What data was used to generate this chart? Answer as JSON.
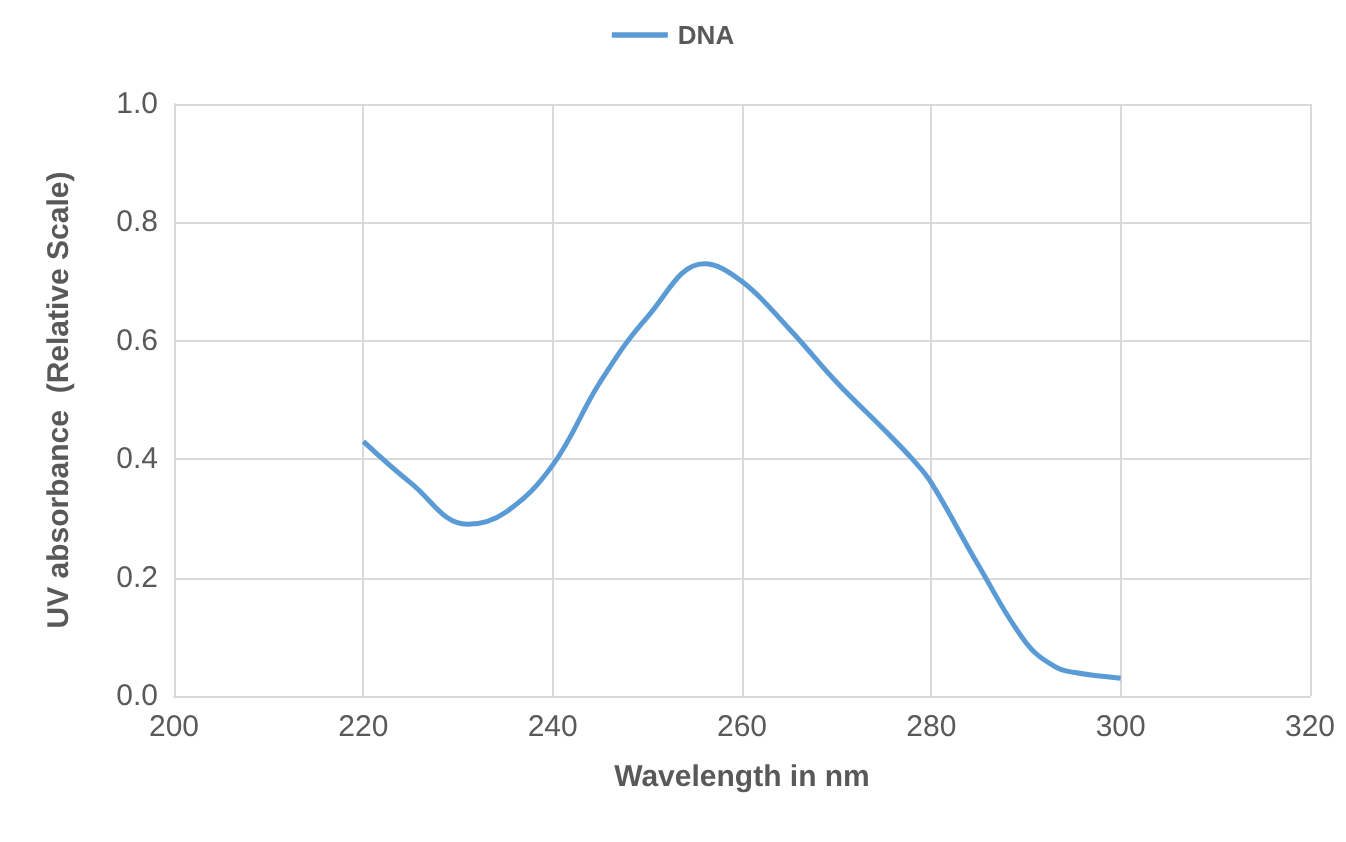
{
  "chart_data": {
    "type": "line",
    "xlabel": "Wavelength in nm",
    "ylabel": "UV absorbance  (Relative Scale)",
    "series": [
      {
        "name": "DNA",
        "color": "#5b9bd5",
        "x": [
          220,
          225,
          231,
          235,
          240,
          245,
          250,
          256,
          260,
          265,
          270,
          275,
          278,
          280,
          285,
          290,
          293,
          295,
          300
        ],
        "values": [
          0.43,
          0.36,
          0.29,
          0.31,
          0.39,
          0.53,
          0.64,
          0.73,
          0.7,
          0.62,
          0.53,
          0.45,
          0.4,
          0.36,
          0.22,
          0.09,
          0.05,
          0.04,
          0.03
        ]
      }
    ],
    "xlim": [
      200,
      320
    ],
    "xticks": [
      200,
      220,
      240,
      260,
      280,
      300,
      320
    ],
    "ylim": [
      0,
      1
    ],
    "yticks": [
      {
        "value": 0,
        "label": "0.0"
      },
      0.2,
      0.4,
      0.6,
      0.8,
      {
        "value": 1,
        "label": "1.0"
      }
    ],
    "grid": true,
    "legend": "top",
    "marker": "none",
    "line_style": "solid"
  }
}
